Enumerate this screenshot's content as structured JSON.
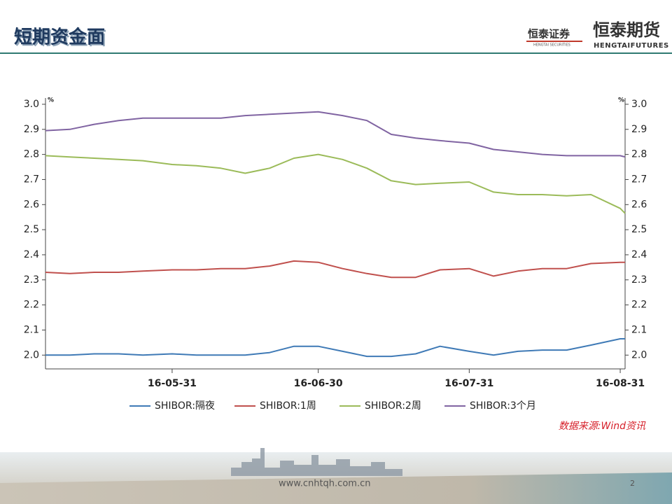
{
  "header": {
    "title": "短期资金面",
    "logo_securities": "恒泰证券",
    "logo_securities_en": "HENGTAI SECURITIES",
    "logo_futures": "恒泰期货",
    "logo_futures_en": "HENGTAIFUTURES"
  },
  "chart_data": {
    "type": "line",
    "x": [
      "16-05-05",
      "16-05-10",
      "16-05-15",
      "16-05-20",
      "16-05-25",
      "16-05-31",
      "16-06-05",
      "16-06-10",
      "16-06-15",
      "16-06-20",
      "16-06-25",
      "16-06-30",
      "16-07-05",
      "16-07-10",
      "16-07-15",
      "16-07-20",
      "16-07-25",
      "16-07-31",
      "16-08-05",
      "16-08-10",
      "16-08-15",
      "16-08-20",
      "16-08-25",
      "16-08-31",
      "16-09-01"
    ],
    "series": [
      {
        "name": "SHIBOR:隔夜",
        "color": "#3f7ab6",
        "values": [
          2.0,
          2.0,
          2.005,
          2.005,
          2.0,
          2.005,
          2.0,
          2.0,
          2.0,
          2.01,
          2.035,
          2.035,
          2.015,
          1.995,
          1.995,
          2.005,
          2.035,
          2.015,
          2.0,
          2.015,
          2.02,
          2.02,
          2.04,
          2.065,
          2.065
        ]
      },
      {
        "name": "SHIBOR:1周",
        "color": "#c0504d",
        "values": [
          2.33,
          2.325,
          2.33,
          2.33,
          2.335,
          2.34,
          2.34,
          2.345,
          2.345,
          2.355,
          2.375,
          2.37,
          2.345,
          2.325,
          2.31,
          2.31,
          2.34,
          2.345,
          2.315,
          2.335,
          2.345,
          2.345,
          2.365,
          2.37,
          2.37
        ]
      },
      {
        "name": "SHIBOR:2周",
        "color": "#9bbb59",
        "values": [
          2.795,
          2.79,
          2.785,
          2.78,
          2.775,
          2.76,
          2.755,
          2.745,
          2.725,
          2.745,
          2.785,
          2.8,
          2.78,
          2.745,
          2.695,
          2.68,
          2.685,
          2.69,
          2.65,
          2.64,
          2.64,
          2.635,
          2.64,
          2.585,
          2.565
        ]
      },
      {
        "name": "SHIBOR:3个月",
        "color": "#8064a2",
        "values": [
          2.895,
          2.9,
          2.92,
          2.935,
          2.945,
          2.945,
          2.945,
          2.945,
          2.955,
          2.96,
          2.965,
          2.97,
          2.955,
          2.935,
          2.88,
          2.865,
          2.855,
          2.845,
          2.82,
          2.81,
          2.8,
          2.795,
          2.795,
          2.795,
          2.79
        ]
      }
    ],
    "xlim": [
      "16-05-05",
      "16-09-01"
    ],
    "xticks": [
      "16-05-31",
      "16-06-30",
      "16-07-31",
      "16-08-31"
    ],
    "ylim": [
      1.945,
      3.025
    ],
    "yticks": [
      {
        "value": 2.0,
        "label": "2.0"
      },
      2.1,
      2.2,
      2.3,
      2.4,
      2.5,
      2.6,
      2.7,
      2.8,
      2.9,
      {
        "value": 3.0,
        "label": "3.0"
      }
    ],
    "y_unit": "%",
    "y2_unit": "%",
    "source": "数据来源:Wind资讯"
  },
  "footer": {
    "url": "www.cnhtqh.com.cn",
    "page": "2"
  }
}
